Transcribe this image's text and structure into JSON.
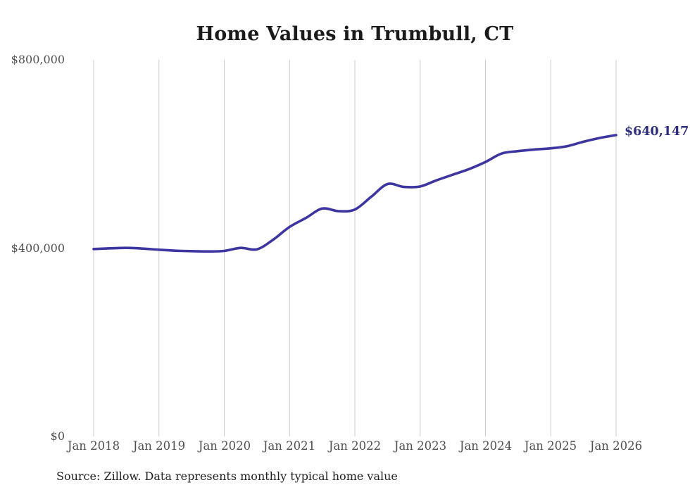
{
  "title": "Home Values in Trumbull, CT",
  "source_note": "Source: Zillow. Data represents monthly typical home value",
  "end_label": "$640,147",
  "colors": {
    "line": "#3d35a0",
    "end_label": "#2c2c7d",
    "grid": "#cccccc",
    "axis_text": "#4f4f4f",
    "title_text": "#1a1a1a",
    "background": "#ffffff"
  },
  "chart_data": {
    "type": "line",
    "title": "Home Values in Trumbull, CT",
    "xlabel": "",
    "ylabel": "",
    "x_tick_labels": [
      "Jan 2018",
      "Jan 2019",
      "Jan 2020",
      "Jan 2021",
      "Jan 2022",
      "Jan 2023",
      "Jan 2024",
      "Jan 2025",
      "Jan 2026"
    ],
    "y_tick_labels": [
      "$800,000",
      "$400,000",
      "$0"
    ],
    "y_tick_values": [
      800000,
      400000,
      0
    ],
    "ylim": [
      0,
      800000
    ],
    "x_range_months": 96,
    "grid": "vertical-only",
    "legend": "none",
    "series": [
      {
        "name": "Monthly typical home value",
        "x_months_from_jan_2018": [
          0,
          3,
          6,
          9,
          12,
          15,
          18,
          21,
          24,
          27,
          30,
          33,
          36,
          39,
          42,
          45,
          48,
          51,
          54,
          57,
          60,
          63,
          66,
          69,
          72,
          75,
          78,
          81,
          84,
          87,
          90,
          93,
          96
        ],
        "values": [
          398000,
          399500,
          400500,
          399000,
          396500,
          394500,
          393500,
          393000,
          394000,
          400500,
          397500,
          418000,
          445000,
          464000,
          484000,
          478500,
          482000,
          509000,
          536000,
          530000,
          531000,
          544000,
          556000,
          568000,
          583000,
          601000,
          606000,
          609500,
          612000,
          616500,
          626000,
          634000,
          640147
        ]
      }
    ],
    "end_value": 640147,
    "end_value_label": "$640,147"
  }
}
